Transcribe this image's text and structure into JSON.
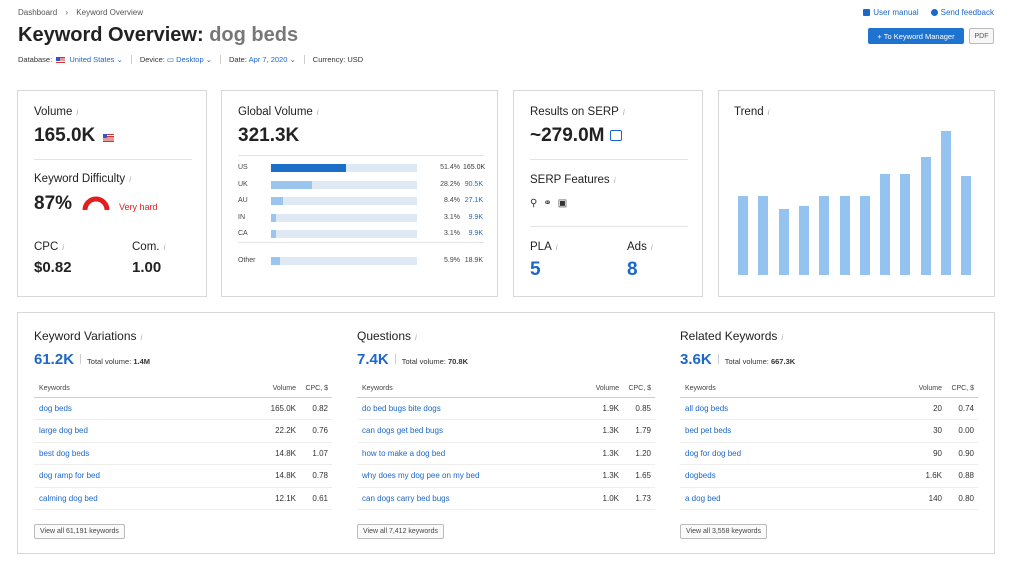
{
  "breadcrumb": {
    "home": "Dashboard",
    "sep": "›",
    "current": "Keyword Overview"
  },
  "top_links": {
    "manual": "User manual",
    "feedback": "Send feedback"
  },
  "title": {
    "prefix": "Keyword Overview:",
    "keyword": "dog beds"
  },
  "buttons": {
    "keyword_manager": "+ To Keyword Manager",
    "pdf": "PDF"
  },
  "filters": {
    "database_label": "Database:",
    "database_value": "United States",
    "device_label": "Device:",
    "device_value": "Desktop",
    "date_label": "Date:",
    "date_value": "Apr 7, 2020",
    "currency": "Currency: USD"
  },
  "volume": {
    "label": "Volume",
    "value": "165.0K"
  },
  "difficulty": {
    "label": "Keyword Difficulty",
    "value": "87%",
    "level": "Very hard"
  },
  "cpc": {
    "label": "CPC",
    "value": "$0.82"
  },
  "com": {
    "label": "Com.",
    "value": "1.00"
  },
  "global_volume": {
    "label": "Global Volume",
    "value": "321.3K",
    "rows": [
      {
        "cc": "US",
        "pct_text": "51.4%",
        "val": "165.0K",
        "fill": 0.514
      },
      {
        "cc": "UK",
        "pct_text": "28.2%",
        "val": "90.5K",
        "fill": 0.282
      },
      {
        "cc": "AU",
        "pct_text": "8.4%",
        "val": "27.1K",
        "fill": 0.084
      },
      {
        "cc": "IN",
        "pct_text": "3.1%",
        "val": "9.9K",
        "fill": 0.031
      },
      {
        "cc": "CA",
        "pct_text": "3.1%",
        "val": "9.9K",
        "fill": 0.031
      }
    ],
    "other": {
      "cc": "Other",
      "pct_text": "5.9%",
      "val": "18.9K",
      "fill": 0.059
    }
  },
  "serp": {
    "label": "Results on SERP",
    "value": "~279.0M",
    "features_label": "SERP Features"
  },
  "pla": {
    "label": "PLA",
    "value": "5"
  },
  "ads": {
    "label": "Ads",
    "value": "8"
  },
  "trend": {
    "label": "Trend"
  },
  "chart_data": {
    "type": "bar",
    "title": "Trend",
    "values": [
      0.55,
      0.55,
      0.46,
      0.48,
      0.55,
      0.55,
      0.55,
      0.7,
      0.7,
      0.82,
      1.0,
      0.69
    ]
  },
  "variations": {
    "title": "Keyword Variations",
    "count": "61.2K",
    "total_label": "Total volume:",
    "total": "1.4M",
    "headers": {
      "kw": "Keywords",
      "vol": "Volume",
      "cpc": "CPC, $"
    },
    "rows": [
      {
        "kw": "dog beds",
        "vol": "165.0K",
        "cpc": "0.82"
      },
      {
        "kw": "large dog bed",
        "vol": "22.2K",
        "cpc": "0.76"
      },
      {
        "kw": "best dog beds",
        "vol": "14.8K",
        "cpc": "1.07"
      },
      {
        "kw": "dog ramp for bed",
        "vol": "14.8K",
        "cpc": "0.78"
      },
      {
        "kw": "calming dog bed",
        "vol": "12.1K",
        "cpc": "0.61"
      }
    ],
    "view_all": "View all 61,191 keywords"
  },
  "questions": {
    "title": "Questions",
    "count": "7.4K",
    "total_label": "Total volume:",
    "total": "70.8K",
    "headers": {
      "kw": "Keywords",
      "vol": "Volume",
      "cpc": "CPC, $"
    },
    "rows": [
      {
        "kw": "do bed bugs bite dogs",
        "vol": "1.9K",
        "cpc": "0.85"
      },
      {
        "kw": "can dogs get bed bugs",
        "vol": "1.3K",
        "cpc": "1.79"
      },
      {
        "kw": "how to make a dog bed",
        "vol": "1.3K",
        "cpc": "1.20"
      },
      {
        "kw": "why does my dog pee on my bed",
        "vol": "1.3K",
        "cpc": "1.65"
      },
      {
        "kw": "can dogs carry bed bugs",
        "vol": "1.0K",
        "cpc": "1.73"
      }
    ],
    "view_all": "View all 7,412 keywords"
  },
  "related": {
    "title": "Related Keywords",
    "count": "3.6K",
    "total_label": "Total volume:",
    "total": "667.3K",
    "headers": {
      "kw": "Keywords",
      "vol": "Volume",
      "cpc": "CPC, $"
    },
    "rows": [
      {
        "kw": "all dog beds",
        "vol": "20",
        "cpc": "0.74"
      },
      {
        "kw": "bed pet beds",
        "vol": "30",
        "cpc": "0.00"
      },
      {
        "kw": "dog for dog bed",
        "vol": "90",
        "cpc": "0.90"
      },
      {
        "kw": "dogbeds",
        "vol": "1.6K",
        "cpc": "0.88"
      },
      {
        "kw": "a dog bed",
        "vol": "140",
        "cpc": "0.80"
      }
    ],
    "view_all": "View all 3,558 keywords"
  },
  "colors": {
    "accent": "#1e72d0",
    "bar_main": "#1c6fc9",
    "bar_light": "#9bc4ee",
    "hard": "#e02020"
  }
}
